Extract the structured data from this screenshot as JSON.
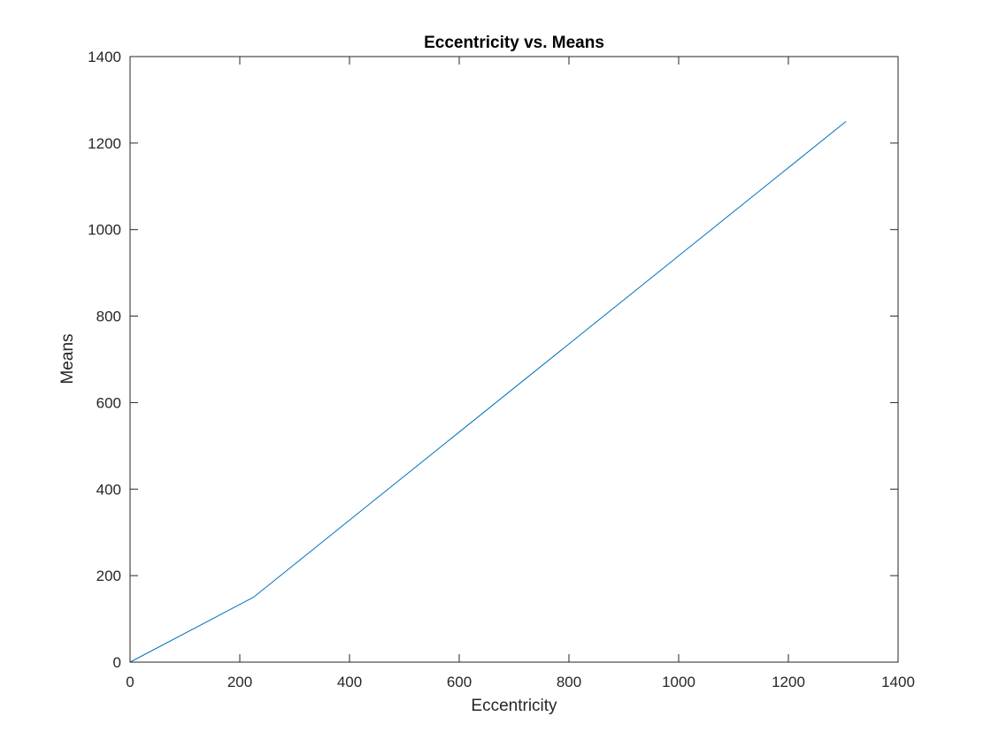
{
  "chart_data": {
    "type": "line",
    "title": "Eccentricity vs. Means",
    "xlabel": "Eccentricity",
    "ylabel": "Means",
    "xlim": [
      0,
      1400
    ],
    "ylim": [
      0,
      1400
    ],
    "xticks": [
      0,
      200,
      400,
      600,
      800,
      1000,
      1200,
      1400
    ],
    "yticks": [
      0,
      200,
      400,
      600,
      800,
      1000,
      1200,
      1400
    ],
    "grid": false,
    "box": true,
    "series": [
      {
        "color": "#0072bd",
        "x": [
          0,
          225,
          1305
        ],
        "y": [
          0,
          150,
          1250
        ]
      }
    ]
  }
}
